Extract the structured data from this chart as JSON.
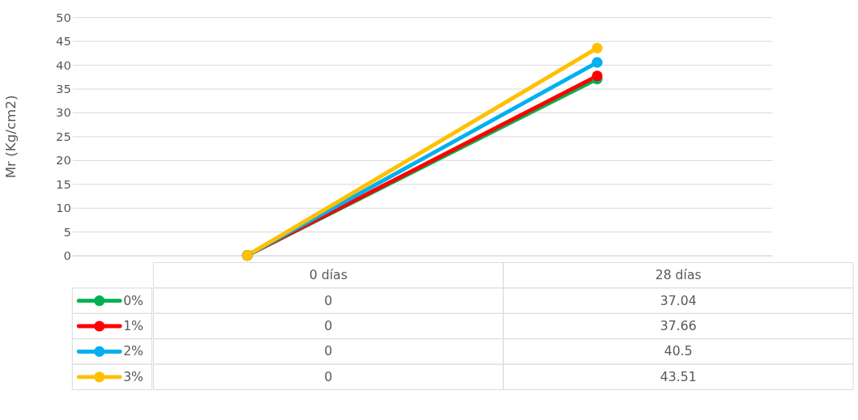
{
  "chart_data": {
    "type": "line",
    "ylabel": "Mr (Kg/cm2)",
    "categories": [
      "0 días",
      "28 días"
    ],
    "series": [
      {
        "name": "0%",
        "color": "#00b050",
        "values": [
          0,
          37.04
        ]
      },
      {
        "name": "1%",
        "color": "#ff0000",
        "values": [
          0,
          37.66
        ]
      },
      {
        "name": "2%",
        "color": "#00b0f0",
        "values": [
          0,
          40.5
        ]
      },
      {
        "name": "3%",
        "color": "#ffc000",
        "values": [
          0,
          43.51
        ]
      }
    ],
    "ylim": [
      0,
      50
    ],
    "yticks": [
      0,
      5,
      10,
      15,
      20,
      25,
      30,
      35,
      40,
      45,
      50
    ],
    "grid": "y",
    "legend": "bottom",
    "data_labels": true,
    "marker": "circle",
    "line_style": "solid"
  }
}
